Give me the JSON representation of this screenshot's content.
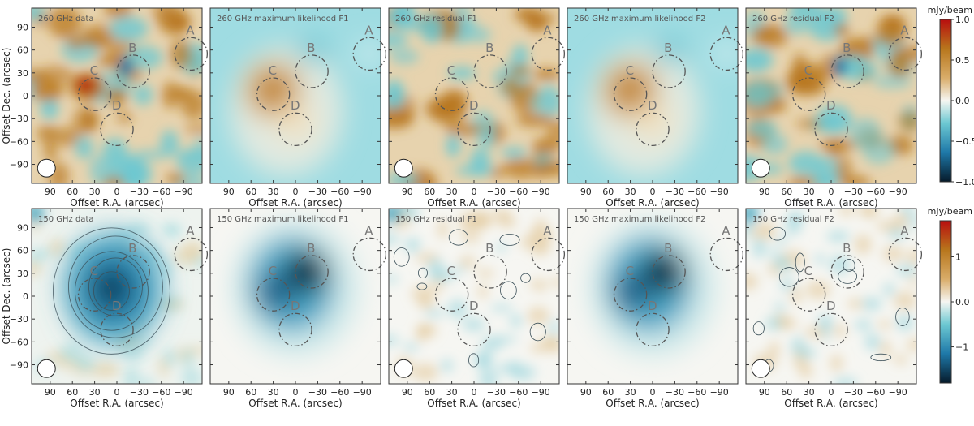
{
  "figure": {
    "x_label": "Offset R.A. (arcsec)",
    "y_label": "Offset Dec. (arcsec)",
    "x_ticks": [
      "90",
      "60",
      "30",
      "0",
      "−30",
      "−60",
      "−90"
    ],
    "y_ticks": [
      "90",
      "60",
      "30",
      "0",
      "−30",
      "−60",
      "−90"
    ]
  },
  "chart_data": {
    "type": "heatmap",
    "xlim": [
      115,
      -115
    ],
    "ylim": [
      -115,
      115
    ],
    "x_tick_values": [
      90,
      60,
      30,
      0,
      -30,
      -60,
      -90
    ],
    "y_tick_values": [
      90,
      60,
      30,
      0,
      -30,
      -60,
      -90
    ],
    "sources": [
      {
        "name": "A",
        "x": -100,
        "y": 55,
        "radius": 22
      },
      {
        "name": "B",
        "x": -22,
        "y": 32,
        "radius": 22
      },
      {
        "name": "C",
        "x": 30,
        "y": 2,
        "radius": 22
      },
      {
        "name": "D",
        "x": 0,
        "y": -44,
        "radius": 22
      }
    ],
    "beam": {
      "x": 95,
      "y": -95,
      "radius": 12
    },
    "rows": [
      {
        "unit": "mJy/beam",
        "colorbar": {
          "range": [
            -1.0,
            1.0
          ],
          "ticks": [
            "1.0",
            "0.5",
            "0.0",
            "−0.5",
            "−1.0"
          ],
          "tick_values": [
            1.0,
            0.5,
            0.0,
            -0.5,
            -1.0
          ]
        },
        "panels": [
          {
            "title": "260 GHz data",
            "kind": "data"
          },
          {
            "title": "260 GHz maximum likelihood F1",
            "kind": "model"
          },
          {
            "title": "260 GHz residual F1",
            "kind": "residual"
          },
          {
            "title": "260 GHz maximum likelihood F2",
            "kind": "model"
          },
          {
            "title": "260 GHz residual F2",
            "kind": "residual"
          }
        ]
      },
      {
        "unit": "mJy/beam",
        "colorbar": {
          "range": [
            -1.8,
            1.8
          ],
          "ticks": [
            "1",
            "0.0",
            "−1"
          ],
          "tick_values": [
            1,
            0,
            -1
          ]
        },
        "panels": [
          {
            "title": "150 GHz data",
            "kind": "data"
          },
          {
            "title": "150 GHz maximum likelihood F1",
            "kind": "model"
          },
          {
            "title": "150 GHz residual F1",
            "kind": "residual"
          },
          {
            "title": "150 GHz maximum likelihood F2",
            "kind": "model"
          },
          {
            "title": "150 GHz residual F2",
            "kind": "residual"
          }
        ]
      }
    ],
    "colors": {
      "low": "#061a2a",
      "mid_low": "#1e78a8",
      "cyan": "#6cc8d2",
      "zero": "#f6f6f2",
      "tan": "#d9ad6a",
      "orange": "#b8761c",
      "high": "#b80e0e"
    }
  }
}
